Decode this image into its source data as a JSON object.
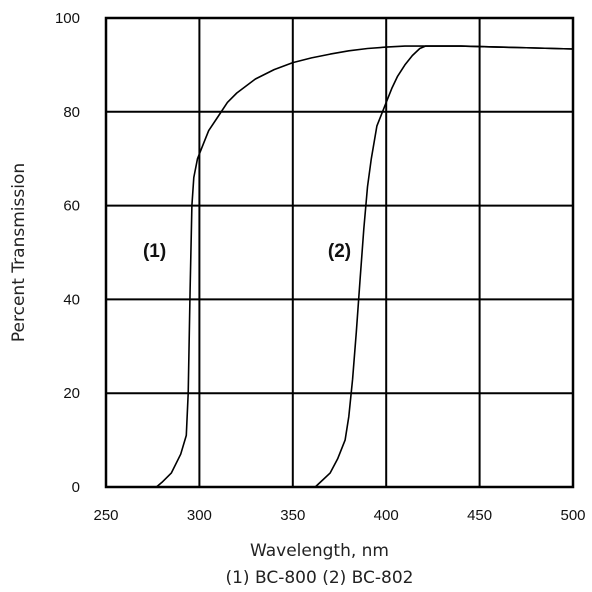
{
  "chart_data": {
    "type": "line",
    "title": "",
    "xlabel": "Wavelength, nm",
    "ylabel": "Percent Transmission",
    "caption": "(1) BC-800 (2) BC-802",
    "xlim": [
      250,
      500
    ],
    "ylim": [
      0,
      100
    ],
    "xticks": [
      250,
      300,
      350,
      400,
      450,
      500
    ],
    "yticks": [
      0,
      20,
      40,
      60,
      80,
      100
    ],
    "grid": true,
    "series": [
      {
        "name": "(1)",
        "x": [
          277,
          280,
          285,
          290,
          293,
          294,
          295,
          296,
          297,
          299,
          302,
          305,
          310,
          315,
          320,
          330,
          340,
          350,
          360,
          370,
          380,
          390,
          400,
          410,
          420,
          430,
          440,
          450,
          460,
          470,
          480,
          490,
          500
        ],
        "y": [
          0,
          1,
          3,
          7,
          11,
          20,
          42,
          60,
          66,
          70,
          73,
          76,
          79,
          82,
          84,
          87,
          89,
          90.5,
          91.5,
          92.3,
          93,
          93.5,
          93.8,
          94,
          94,
          94,
          94,
          93.9,
          93.8,
          93.7,
          93.6,
          93.5,
          93.4
        ]
      },
      {
        "name": "(2)",
        "x": [
          362,
          366,
          370,
          374,
          378,
          380,
          382,
          384,
          386,
          388,
          390,
          392,
          395,
          398,
          400,
          403,
          406,
          410,
          414,
          418,
          421,
          425,
          430,
          440,
          450,
          460,
          470,
          480,
          490,
          500
        ],
        "y": [
          0,
          1.5,
          3,
          6,
          10,
          15,
          23,
          33,
          44,
          55,
          64,
          70,
          77,
          80,
          82,
          85,
          87.5,
          90,
          92,
          93.5,
          94,
          94,
          94,
          94,
          93.9,
          93.8,
          93.7,
          93.6,
          93.5,
          93.4
        ]
      }
    ]
  }
}
